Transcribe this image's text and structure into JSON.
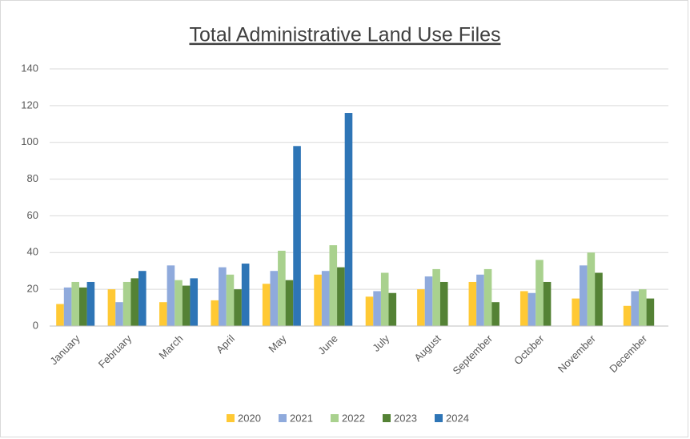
{
  "chart_data": {
    "type": "bar",
    "title": "Total Administrative Land Use Files",
    "categories": [
      "January",
      "February",
      "March",
      "April",
      "May",
      "June",
      "July",
      "August",
      "September",
      "October",
      "November",
      "December"
    ],
    "series": [
      {
        "name": "2020",
        "color": "#ffc934",
        "values": [
          12,
          20,
          13,
          14,
          23,
          28,
          16,
          20,
          24,
          19,
          15,
          11
        ]
      },
      {
        "name": "2021",
        "color": "#8faadc",
        "values": [
          21,
          13,
          33,
          32,
          30,
          30,
          19,
          27,
          28,
          18,
          33,
          19
        ]
      },
      {
        "name": "2022",
        "color": "#a9d18e",
        "values": [
          24,
          24,
          25,
          28,
          41,
          44,
          29,
          31,
          31,
          36,
          40,
          20
        ]
      },
      {
        "name": "2023",
        "color": "#548235",
        "values": [
          21,
          26,
          22,
          20,
          25,
          32,
          18,
          24,
          13,
          24,
          29,
          15
        ]
      },
      {
        "name": "2024",
        "color": "#2e75b6",
        "values": [
          24,
          30,
          26,
          34,
          98,
          116,
          null,
          null,
          null,
          null,
          null,
          null
        ]
      }
    ],
    "ylim": [
      0,
      140
    ],
    "yticks": [
      0,
      20,
      40,
      60,
      80,
      100,
      120,
      140
    ],
    "grid": true,
    "legend": "bottom"
  }
}
